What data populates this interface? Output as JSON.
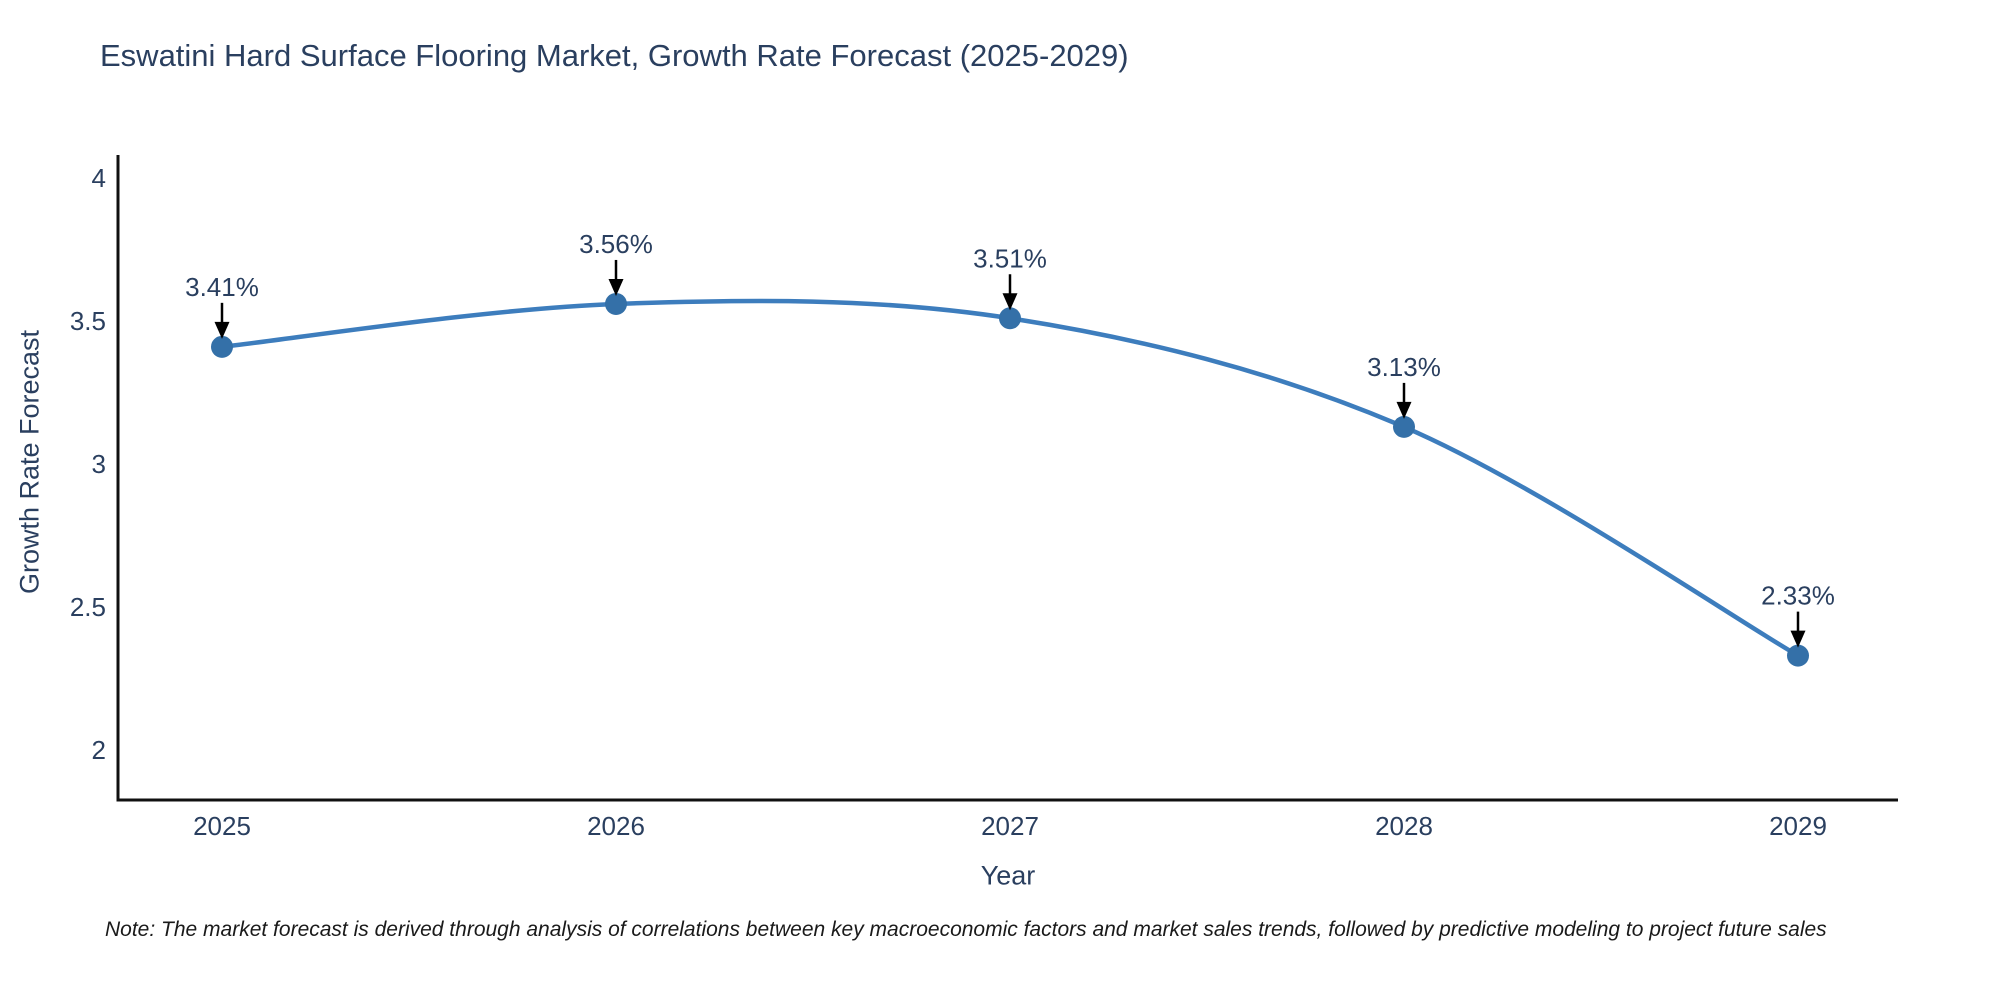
{
  "note": "Note: The market forecast is derived through analysis of correlations between key macroeconomic factors and market sales trends, followed by predictive modeling to project future sales",
  "chart_data": {
    "type": "line",
    "title": "Eswatini Hard Surface Flooring Market, Growth Rate Forecast (2025-2029)",
    "xlabel": "Year",
    "ylabel": "Growth Rate Forecast",
    "categories": [
      "2025",
      "2026",
      "2027",
      "2028",
      "2029"
    ],
    "series": [
      {
        "name": "Growth Rate Forecast",
        "values": [
          3.41,
          3.56,
          3.51,
          3.13,
          2.33
        ]
      }
    ],
    "point_labels": [
      "3.41%",
      "3.56%",
      "3.51%",
      "3.13%",
      "2.33%"
    ],
    "y_ticks": [
      2,
      2.5,
      3,
      3.5,
      4
    ],
    "y_tick_labels": [
      "2",
      "2.5",
      "3",
      "3.5",
      "4"
    ],
    "ylim": [
      1.825,
      4.081
    ],
    "grid": false,
    "legend_position": "none",
    "smooth": true,
    "colors": {
      "line": "#3d7dbd",
      "marker": "#3470a8",
      "axis": "#101010",
      "text": "#2a3f5f",
      "annotation_arrow": "#000000"
    }
  }
}
